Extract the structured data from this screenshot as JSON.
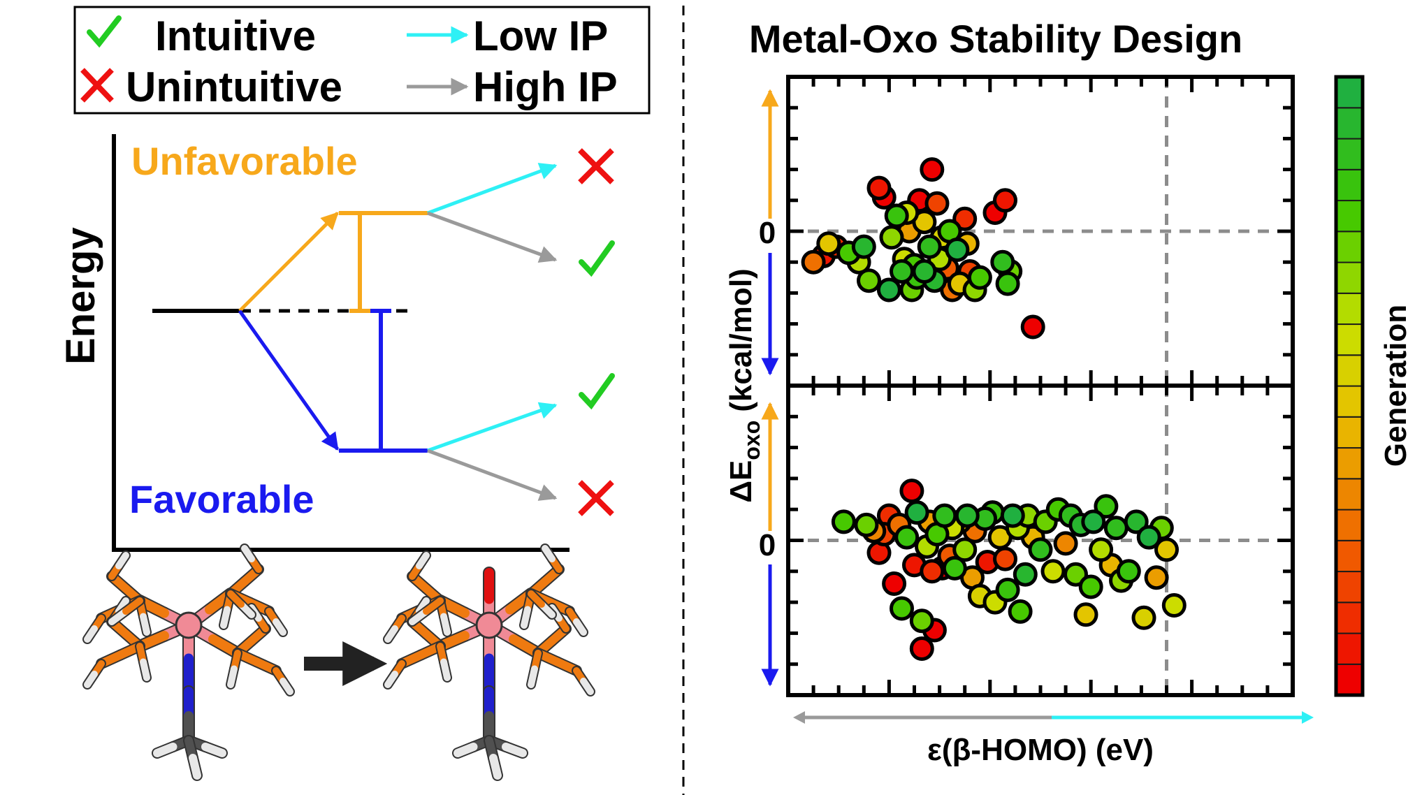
{
  "legend": {
    "intuitive": "Intuitive",
    "unintuitive": "Unintuitive",
    "low_ip": "Low IP",
    "high_ip": "High IP"
  },
  "energy_diagram": {
    "y_label": "Energy",
    "unfavorable_label": "Unfavorable",
    "favorable_label": "Favorable"
  },
  "colors": {
    "orange": "#f7a81b",
    "blue": "#1a1aef",
    "cyan": "#2ef0f5",
    "gray": "#9a9a9a",
    "check": "#22cc22",
    "cross": "#ee1111",
    "phosphorus": "#ef7a10",
    "metal": "#f08a96",
    "nitrogen": "#2020cc",
    "oxygen": "#e01010",
    "carbon": "#505050",
    "hydrogen": "#e8e8e8"
  },
  "chart_data": {
    "type": "scatter",
    "title": "Metal-Oxo Stability Design",
    "ylabel_main": "ΔE",
    "ylabel_sub": "oxo",
    "ylabel_unit": "(kcal/mol)",
    "xlabel": "ε(β-HOMO) (eV)",
    "colorbar_label": "Generation",
    "x_range": [
      -10,
      10
    ],
    "y_range": [
      -5,
      5
    ],
    "zero_tick": "0",
    "x_reference_line": 5,
    "generation_range": [
      1,
      20
    ],
    "panels": [
      {
        "name": "upper panel",
        "points": [
          {
            "x": -9.0,
            "y": -1.0,
            "g": 6
          },
          {
            "x": -8.6,
            "y": -0.8,
            "g": 2
          },
          {
            "x": -8.4,
            "y": -0.4,
            "g": 10
          },
          {
            "x": -8.1,
            "y": -0.5,
            "g": 3
          },
          {
            "x": -7.6,
            "y": -0.7,
            "g": 16
          },
          {
            "x": -7.2,
            "y": -1.0,
            "g": 13
          },
          {
            "x": -7.0,
            "y": -0.5,
            "g": 19
          },
          {
            "x": -6.8,
            "y": -1.6,
            "g": 15
          },
          {
            "x": -6.4,
            "y": 1.4,
            "g": 2
          },
          {
            "x": -6.2,
            "y": 1.1,
            "g": 1
          },
          {
            "x": -5.9,
            "y": -0.2,
            "g": 14
          },
          {
            "x": -5.7,
            "y": 0.5,
            "g": 17
          },
          {
            "x": -5.5,
            "y": -1.3,
            "g": 18
          },
          {
            "x": -5.4,
            "y": -0.9,
            "g": 12
          },
          {
            "x": -5.2,
            "y": 0.0,
            "g": 8
          },
          {
            "x": -5.0,
            "y": -1.1,
            "g": 16
          },
          {
            "x": -4.9,
            "y": -1.5,
            "g": 17
          },
          {
            "x": -4.8,
            "y": 1.0,
            "g": 1
          },
          {
            "x": -4.6,
            "y": 0.3,
            "g": 10
          },
          {
            "x": -4.4,
            "y": -0.5,
            "g": 18
          },
          {
            "x": -4.3,
            "y": 2.0,
            "g": 1
          },
          {
            "x": -4.2,
            "y": -1.6,
            "g": 19
          },
          {
            "x": -4.1,
            "y": 0.9,
            "g": 4
          },
          {
            "x": -4.0,
            "y": -0.9,
            "g": 13
          },
          {
            "x": -3.9,
            "y": -0.2,
            "g": 11
          },
          {
            "x": -3.7,
            "y": -1.2,
            "g": 5
          },
          {
            "x": -3.6,
            "y": 0.0,
            "g": 16
          },
          {
            "x": -3.5,
            "y": -1.9,
            "g": 6
          },
          {
            "x": -3.3,
            "y": -0.6,
            "g": 20
          },
          {
            "x": -3.2,
            "y": -1.7,
            "g": 10
          },
          {
            "x": -3.0,
            "y": 0.4,
            "g": 3
          },
          {
            "x": -2.9,
            "y": -0.4,
            "g": 9
          },
          {
            "x": -2.8,
            "y": -1.3,
            "g": 4
          },
          {
            "x": -2.6,
            "y": -1.9,
            "g": 14
          },
          {
            "x": -2.4,
            "y": -1.5,
            "g": 16
          },
          {
            "x": -1.8,
            "y": 0.6,
            "g": 1
          },
          {
            "x": -1.5,
            "y": -1.0,
            "g": 18
          },
          {
            "x": -1.4,
            "y": 1.0,
            "g": 2
          },
          {
            "x": -1.3,
            "y": -1.7,
            "g": 17
          },
          {
            "x": -1.2,
            "y": -1.3,
            "g": 15
          },
          {
            "x": -0.3,
            "y": -3.1,
            "g": 1
          },
          {
            "x": -6.0,
            "y": -1.9,
            "g": 20
          },
          {
            "x": -5.1,
            "y": -1.9,
            "g": 15
          },
          {
            "x": -4.6,
            "y": -1.3,
            "g": 19
          },
          {
            "x": -5.3,
            "y": 0.6,
            "g": 12
          }
        ]
      },
      {
        "name": "lower panel",
        "points": [
          {
            "x": -7.8,
            "y": 0.6,
            "g": 16
          },
          {
            "x": -6.9,
            "y": 0.5,
            "g": 15
          },
          {
            "x": -6.6,
            "y": 0.3,
            "g": 7
          },
          {
            "x": -6.2,
            "y": 0.2,
            "g": 4
          },
          {
            "x": -6.0,
            "y": 0.8,
            "g": 3
          },
          {
            "x": -5.8,
            "y": -1.4,
            "g": 1
          },
          {
            "x": -5.6,
            "y": 0.5,
            "g": 6
          },
          {
            "x": -5.5,
            "y": -2.2,
            "g": 16
          },
          {
            "x": -5.3,
            "y": 0.1,
            "g": 17
          },
          {
            "x": -5.1,
            "y": 1.6,
            "g": 1
          },
          {
            "x": -5.0,
            "y": -0.8,
            "g": 2
          },
          {
            "x": -4.9,
            "y": 0.9,
            "g": 20
          },
          {
            "x": -4.7,
            "y": -2.6,
            "g": 15
          },
          {
            "x": -4.7,
            "y": -3.5,
            "g": 1
          },
          {
            "x": -4.5,
            "y": -0.2,
            "g": 13
          },
          {
            "x": -4.4,
            "y": 0.6,
            "g": 8
          },
          {
            "x": -4.3,
            "y": -1.0,
            "g": 3
          },
          {
            "x": -4.1,
            "y": 0.2,
            "g": 16
          },
          {
            "x": -3.9,
            "y": -0.9,
            "g": 1
          },
          {
            "x": -3.8,
            "y": 0.8,
            "g": 18
          },
          {
            "x": -3.6,
            "y": -0.5,
            "g": 5
          },
          {
            "x": -3.5,
            "y": 0.4,
            "g": 12
          },
          {
            "x": -3.4,
            "y": -0.9,
            "g": 17
          },
          {
            "x": -3.2,
            "y": 0.6,
            "g": 9
          },
          {
            "x": -3.0,
            "y": -0.3,
            "g": 14
          },
          {
            "x": -2.9,
            "y": 0.8,
            "g": 19
          },
          {
            "x": -2.7,
            "y": -1.2,
            "g": 8
          },
          {
            "x": -2.6,
            "y": 0.3,
            "g": 6
          },
          {
            "x": -2.4,
            "y": -1.8,
            "g": 11
          },
          {
            "x": -2.2,
            "y": 0.7,
            "g": 18
          },
          {
            "x": -2.1,
            "y": -0.7,
            "g": 2
          },
          {
            "x": -1.9,
            "y": 0.9,
            "g": 17
          },
          {
            "x": -1.8,
            "y": -2.0,
            "g": 12
          },
          {
            "x": -1.6,
            "y": 0.1,
            "g": 10
          },
          {
            "x": -1.4,
            "y": -0.6,
            "g": 4
          },
          {
            "x": -1.3,
            "y": -1.6,
            "g": 17
          },
          {
            "x": -1.1,
            "y": 0.8,
            "g": 20
          },
          {
            "x": -0.9,
            "y": 0.4,
            "g": 13
          },
          {
            "x": -0.8,
            "y": -2.3,
            "g": 16
          },
          {
            "x": -0.6,
            "y": -1.1,
            "g": 19
          },
          {
            "x": -0.5,
            "y": 0.8,
            "g": 14
          },
          {
            "x": -0.3,
            "y": 0.1,
            "g": 9
          },
          {
            "x": 0.0,
            "y": -0.3,
            "g": 18
          },
          {
            "x": 0.2,
            "y": 0.6,
            "g": 15
          },
          {
            "x": 0.5,
            "y": -1.0,
            "g": 12
          },
          {
            "x": 0.7,
            "y": 1.0,
            "g": 16
          },
          {
            "x": 1.0,
            "y": -0.1,
            "g": 7
          },
          {
            "x": 1.2,
            "y": 0.8,
            "g": 18
          },
          {
            "x": 1.4,
            "y": -1.1,
            "g": 15
          },
          {
            "x": 1.6,
            "y": 0.5,
            "g": 19
          },
          {
            "x": 1.8,
            "y": -2.4,
            "g": 10
          },
          {
            "x": 2.0,
            "y": -1.5,
            "g": 16
          },
          {
            "x": 2.1,
            "y": 0.6,
            "g": 20
          },
          {
            "x": 2.4,
            "y": -0.3,
            "g": 13
          },
          {
            "x": 2.6,
            "y": 1.1,
            "g": 17
          },
          {
            "x": 2.8,
            "y": -0.8,
            "g": 9
          },
          {
            "x": 3.0,
            "y": 0.4,
            "g": 18
          },
          {
            "x": 3.2,
            "y": -1.3,
            "g": 14
          },
          {
            "x": 3.5,
            "y": -1.0,
            "g": 17
          },
          {
            "x": 3.8,
            "y": 0.6,
            "g": 19
          },
          {
            "x": 4.1,
            "y": -2.5,
            "g": 11
          },
          {
            "x": 4.3,
            "y": 0.1,
            "g": 20
          },
          {
            "x": 4.6,
            "y": -1.2,
            "g": 8
          },
          {
            "x": 4.8,
            "y": 0.4,
            "g": 15
          },
          {
            "x": 5.0,
            "y": -0.3,
            "g": 10
          },
          {
            "x": 5.3,
            "y": -2.1,
            "g": 12
          },
          {
            "x": -6.4,
            "y": -0.4,
            "g": 2
          },
          {
            "x": -4.2,
            "y": -2.9,
            "g": 1
          }
        ]
      }
    ]
  }
}
